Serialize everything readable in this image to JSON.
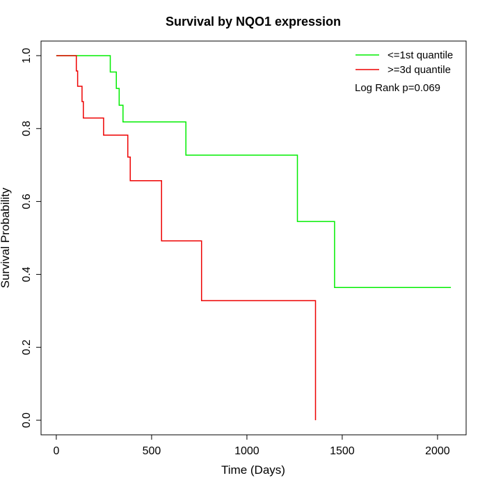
{
  "chart_data": {
    "type": "line",
    "title": "Survival by NQO1 expression",
    "xlabel": "Time (Days)",
    "ylabel": "Survival Probability",
    "xlim": [
      -80,
      2150
    ],
    "ylim": [
      -0.04,
      1.04
    ],
    "x_ticks": [
      0,
      500,
      1000,
      1500,
      2000
    ],
    "y_ticks": [
      0.0,
      0.2,
      0.4,
      0.6,
      0.8,
      1.0
    ],
    "x_tick_labels": [
      "0",
      "500",
      "1000",
      "1500",
      "2000"
    ],
    "y_tick_labels": [
      "0.0",
      "0.2",
      "0.4",
      "0.6",
      "0.8",
      "1.0"
    ],
    "grid": false,
    "legend_position": "top-right",
    "annotation": "Log Rank p=0.069",
    "series": [
      {
        "name": "<=1st quantile",
        "color": "#00ee00",
        "step_points": [
          [
            0,
            1.0
          ],
          [
            283,
            1.0
          ],
          [
            283,
            0.955
          ],
          [
            315,
            0.955
          ],
          [
            315,
            0.91
          ],
          [
            330,
            0.91
          ],
          [
            330,
            0.864
          ],
          [
            350,
            0.864
          ],
          [
            350,
            0.818
          ],
          [
            680,
            0.818
          ],
          [
            680,
            0.727
          ],
          [
            1265,
            0.727
          ],
          [
            1265,
            0.545
          ],
          [
            1460,
            0.545
          ],
          [
            1460,
            0.364
          ],
          [
            2070,
            0.364
          ]
        ]
      },
      {
        "name": ">=3d quantile",
        "color": "#ee0000",
        "step_points": [
          [
            0,
            1.0
          ],
          [
            105,
            1.0
          ],
          [
            105,
            0.958
          ],
          [
            112,
            0.958
          ],
          [
            112,
            0.916
          ],
          [
            135,
            0.916
          ],
          [
            135,
            0.874
          ],
          [
            142,
            0.874
          ],
          [
            142,
            0.829
          ],
          [
            248,
            0.829
          ],
          [
            248,
            0.782
          ],
          [
            375,
            0.782
          ],
          [
            375,
            0.722
          ],
          [
            388,
            0.722
          ],
          [
            388,
            0.657
          ],
          [
            552,
            0.657
          ],
          [
            552,
            0.492
          ],
          [
            762,
            0.492
          ],
          [
            762,
            0.328
          ],
          [
            1360,
            0.328
          ],
          [
            1360,
            0.0
          ]
        ]
      }
    ]
  }
}
